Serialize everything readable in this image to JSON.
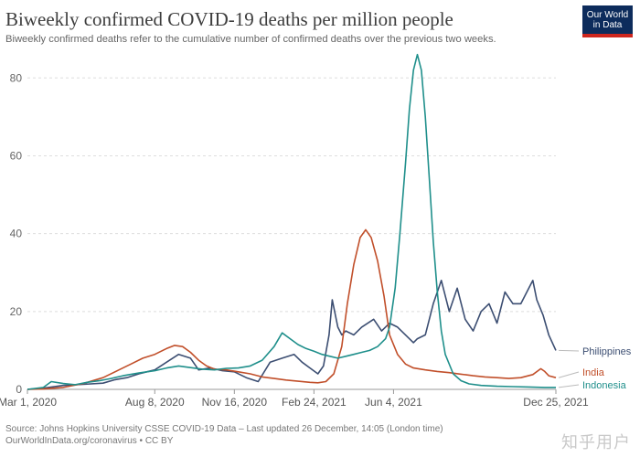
{
  "header": {
    "title": "Biweekly confirmed COVID-19 deaths per million people",
    "subtitle": "Biweekly confirmed deaths refer to the cumulative number of confirmed deaths over the previous two weeks."
  },
  "logo": {
    "line1": "Our World",
    "line2": "in Data"
  },
  "footer": {
    "source": "Source: Johns Hopkins University CSSE COVID-19 Data – Last updated 26 December, 14:05 (London time)",
    "license": "OurWorldInData.org/coronavirus • CC BY"
  },
  "watermark": "知乎用户",
  "chart_data": {
    "type": "line",
    "title": "Biweekly confirmed COVID-19 deaths per million people",
    "xlabel": "",
    "ylabel": "",
    "xlim": [
      "2020-03-01",
      "2021-12-25"
    ],
    "ylim": [
      0,
      85
    ],
    "yticks": [
      0,
      20,
      40,
      60,
      80
    ],
    "ytick_labels": [
      "0",
      "20",
      "40",
      "60",
      "80"
    ],
    "xtick_labels": [
      "Mar 1, 2020",
      "Aug 8, 2020",
      "Nov 16, 2020",
      "Feb 24, 2021",
      "Jun 4, 2021",
      "Dec 25, 2021"
    ],
    "xtick_days": [
      0,
      160,
      260,
      360,
      460,
      664
    ],
    "grid": true,
    "series": [
      {
        "name": "Philippines",
        "color": "#3c4e72",
        "days": [
          0,
          20,
          45,
          70,
          95,
          110,
          125,
          140,
          150,
          160,
          175,
          190,
          205,
          215,
          230,
          245,
          260,
          275,
          290,
          305,
          320,
          335,
          345,
          355,
          365,
          372,
          379,
          383,
          390,
          395,
          400,
          410,
          420,
          435,
          445,
          455,
          465,
          475,
          485,
          490,
          500,
          510,
          520,
          530,
          540,
          550,
          560,
          570,
          580,
          590,
          600,
          610,
          620,
          630,
          635,
          640,
          648,
          655,
          664
        ],
        "values": [
          0,
          0.3,
          1,
          1.3,
          1.6,
          2.5,
          3,
          4,
          4.5,
          5,
          7,
          9,
          8,
          5,
          5.5,
          4.8,
          4.5,
          3,
          2,
          7,
          8,
          9,
          7,
          5.5,
          4,
          6,
          14,
          23,
          16,
          14,
          15,
          14,
          16,
          18,
          15,
          17,
          16,
          14,
          12,
          13,
          14,
          22,
          28,
          20,
          26,
          18,
          15,
          20,
          22,
          17,
          25,
          22,
          22,
          26,
          28,
          23,
          19,
          14,
          10
        ]
      },
      {
        "name": "India",
        "color": "#c14f2a",
        "days": [
          0,
          20,
          45,
          70,
          95,
          115,
          130,
          145,
          160,
          175,
          185,
          195,
          205,
          215,
          225,
          235,
          250,
          265,
          280,
          295,
          310,
          325,
          340,
          355,
          365,
          375,
          385,
          395,
          402,
          410,
          418,
          425,
          432,
          440,
          448,
          455,
          465,
          475,
          485,
          500,
          515,
          530,
          545,
          560,
          575,
          590,
          605,
          620,
          635,
          645,
          650,
          655,
          664
        ],
        "values": [
          0,
          0.1,
          0.5,
          1.5,
          3,
          5,
          6.5,
          8,
          9,
          10.5,
          11.3,
          11,
          9.5,
          7.5,
          6,
          5.2,
          5,
          4.5,
          4,
          3.2,
          2.8,
          2.4,
          2.1,
          1.8,
          1.7,
          2,
          4,
          11,
          22,
          32,
          39,
          41,
          39,
          33,
          24,
          14,
          9,
          6.5,
          5.5,
          5,
          4.6,
          4.3,
          3.9,
          3.5,
          3.2,
          3,
          2.8,
          3,
          3.8,
          5.3,
          4.6,
          3.5,
          3
        ]
      },
      {
        "name": "Indonesia",
        "color": "#1f8f8b",
        "days": [
          0,
          20,
          30,
          45,
          60,
          75,
          90,
          105,
          120,
          140,
          160,
          175,
          190,
          205,
          220,
          235,
          250,
          265,
          280,
          295,
          310,
          320,
          330,
          340,
          350,
          360,
          370,
          380,
          390,
          400,
          410,
          420,
          430,
          440,
          450,
          455,
          462,
          468,
          475,
          480,
          485,
          490,
          495,
          500,
          505,
          510,
          515,
          520,
          525,
          535,
          545,
          555,
          570,
          590,
          610,
          630,
          650,
          664
        ],
        "values": [
          0,
          0.5,
          2,
          1.5,
          1.2,
          1.8,
          2.2,
          2.8,
          3.5,
          4.2,
          4.8,
          5.5,
          6,
          5.6,
          5.2,
          5,
          5.4,
          5.5,
          6,
          7.5,
          11,
          14.5,
          13,
          11.5,
          10.5,
          9.8,
          9,
          8.5,
          8,
          8.5,
          9,
          9.5,
          10,
          11,
          13,
          16,
          26,
          40,
          58,
          72,
          82,
          86,
          82,
          70,
          54,
          38,
          25,
          15,
          9,
          4,
          2.2,
          1.4,
          1,
          0.8,
          0.7,
          0.6,
          0.5,
          0.5
        ]
      }
    ]
  }
}
